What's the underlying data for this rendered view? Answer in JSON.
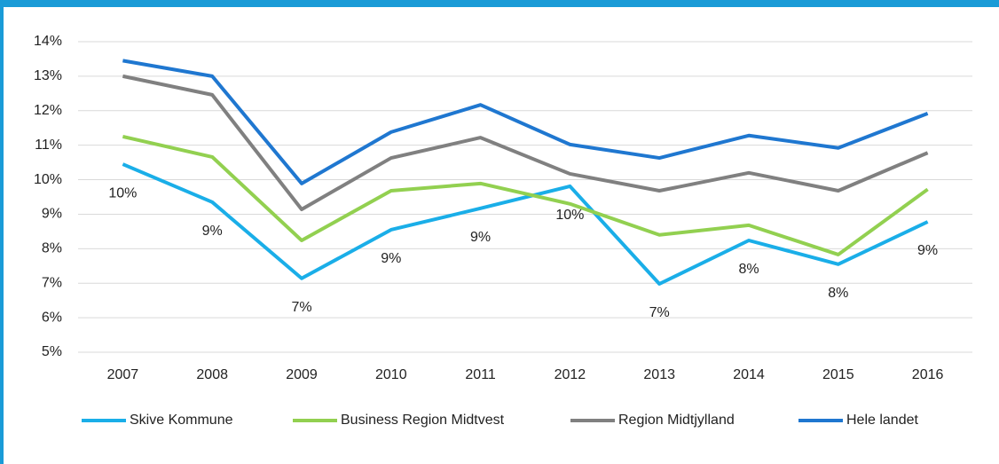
{
  "chart_data": {
    "type": "line",
    "categories": [
      "2007",
      "2008",
      "2009",
      "2010",
      "2011",
      "2012",
      "2013",
      "2014",
      "2015",
      "2016"
    ],
    "series": [
      {
        "name": "Skive Kommune",
        "color": "#1aaee8",
        "values": [
          10.45,
          9.35,
          7.14,
          8.55,
          9.17,
          9.81,
          6.98,
          8.24,
          7.55,
          8.78
        ],
        "value_labels": [
          "10%",
          "9%",
          "7%",
          "9%",
          "9%",
          "10%",
          "7%",
          "8%",
          "8%",
          "9%"
        ]
      },
      {
        "name": "Business Region Midtvest",
        "color": "#92d050",
        "values": [
          11.25,
          10.66,
          8.24,
          9.68,
          9.89,
          9.3,
          8.4,
          8.68,
          7.83,
          9.72
        ]
      },
      {
        "name": "Region Midtjylland",
        "color": "#808080",
        "values": [
          13.0,
          12.46,
          9.14,
          10.63,
          11.22,
          10.17,
          9.68,
          10.2,
          9.68,
          10.78
        ]
      },
      {
        "name": "Hele landet",
        "color": "#1f77d0",
        "values": [
          13.45,
          13.0,
          9.89,
          11.38,
          12.17,
          11.02,
          10.63,
          11.28,
          10.92,
          11.92
        ]
      }
    ],
    "ylim": [
      5,
      14
    ],
    "yticks": [
      {
        "value": 5,
        "label": "5%"
      },
      {
        "value": 6,
        "label": "6%"
      },
      {
        "value": 7,
        "label": "7%"
      },
      {
        "value": 8,
        "label": "8%"
      },
      {
        "value": 9,
        "label": "9%"
      },
      {
        "value": 10,
        "label": "10%"
      },
      {
        "value": 11,
        "label": "11%"
      },
      {
        "value": 12,
        "label": "12%"
      },
      {
        "value": 13,
        "label": "13%"
      },
      {
        "value": 14,
        "label": "14%"
      }
    ],
    "grid": true,
    "legend": "bottom"
  }
}
